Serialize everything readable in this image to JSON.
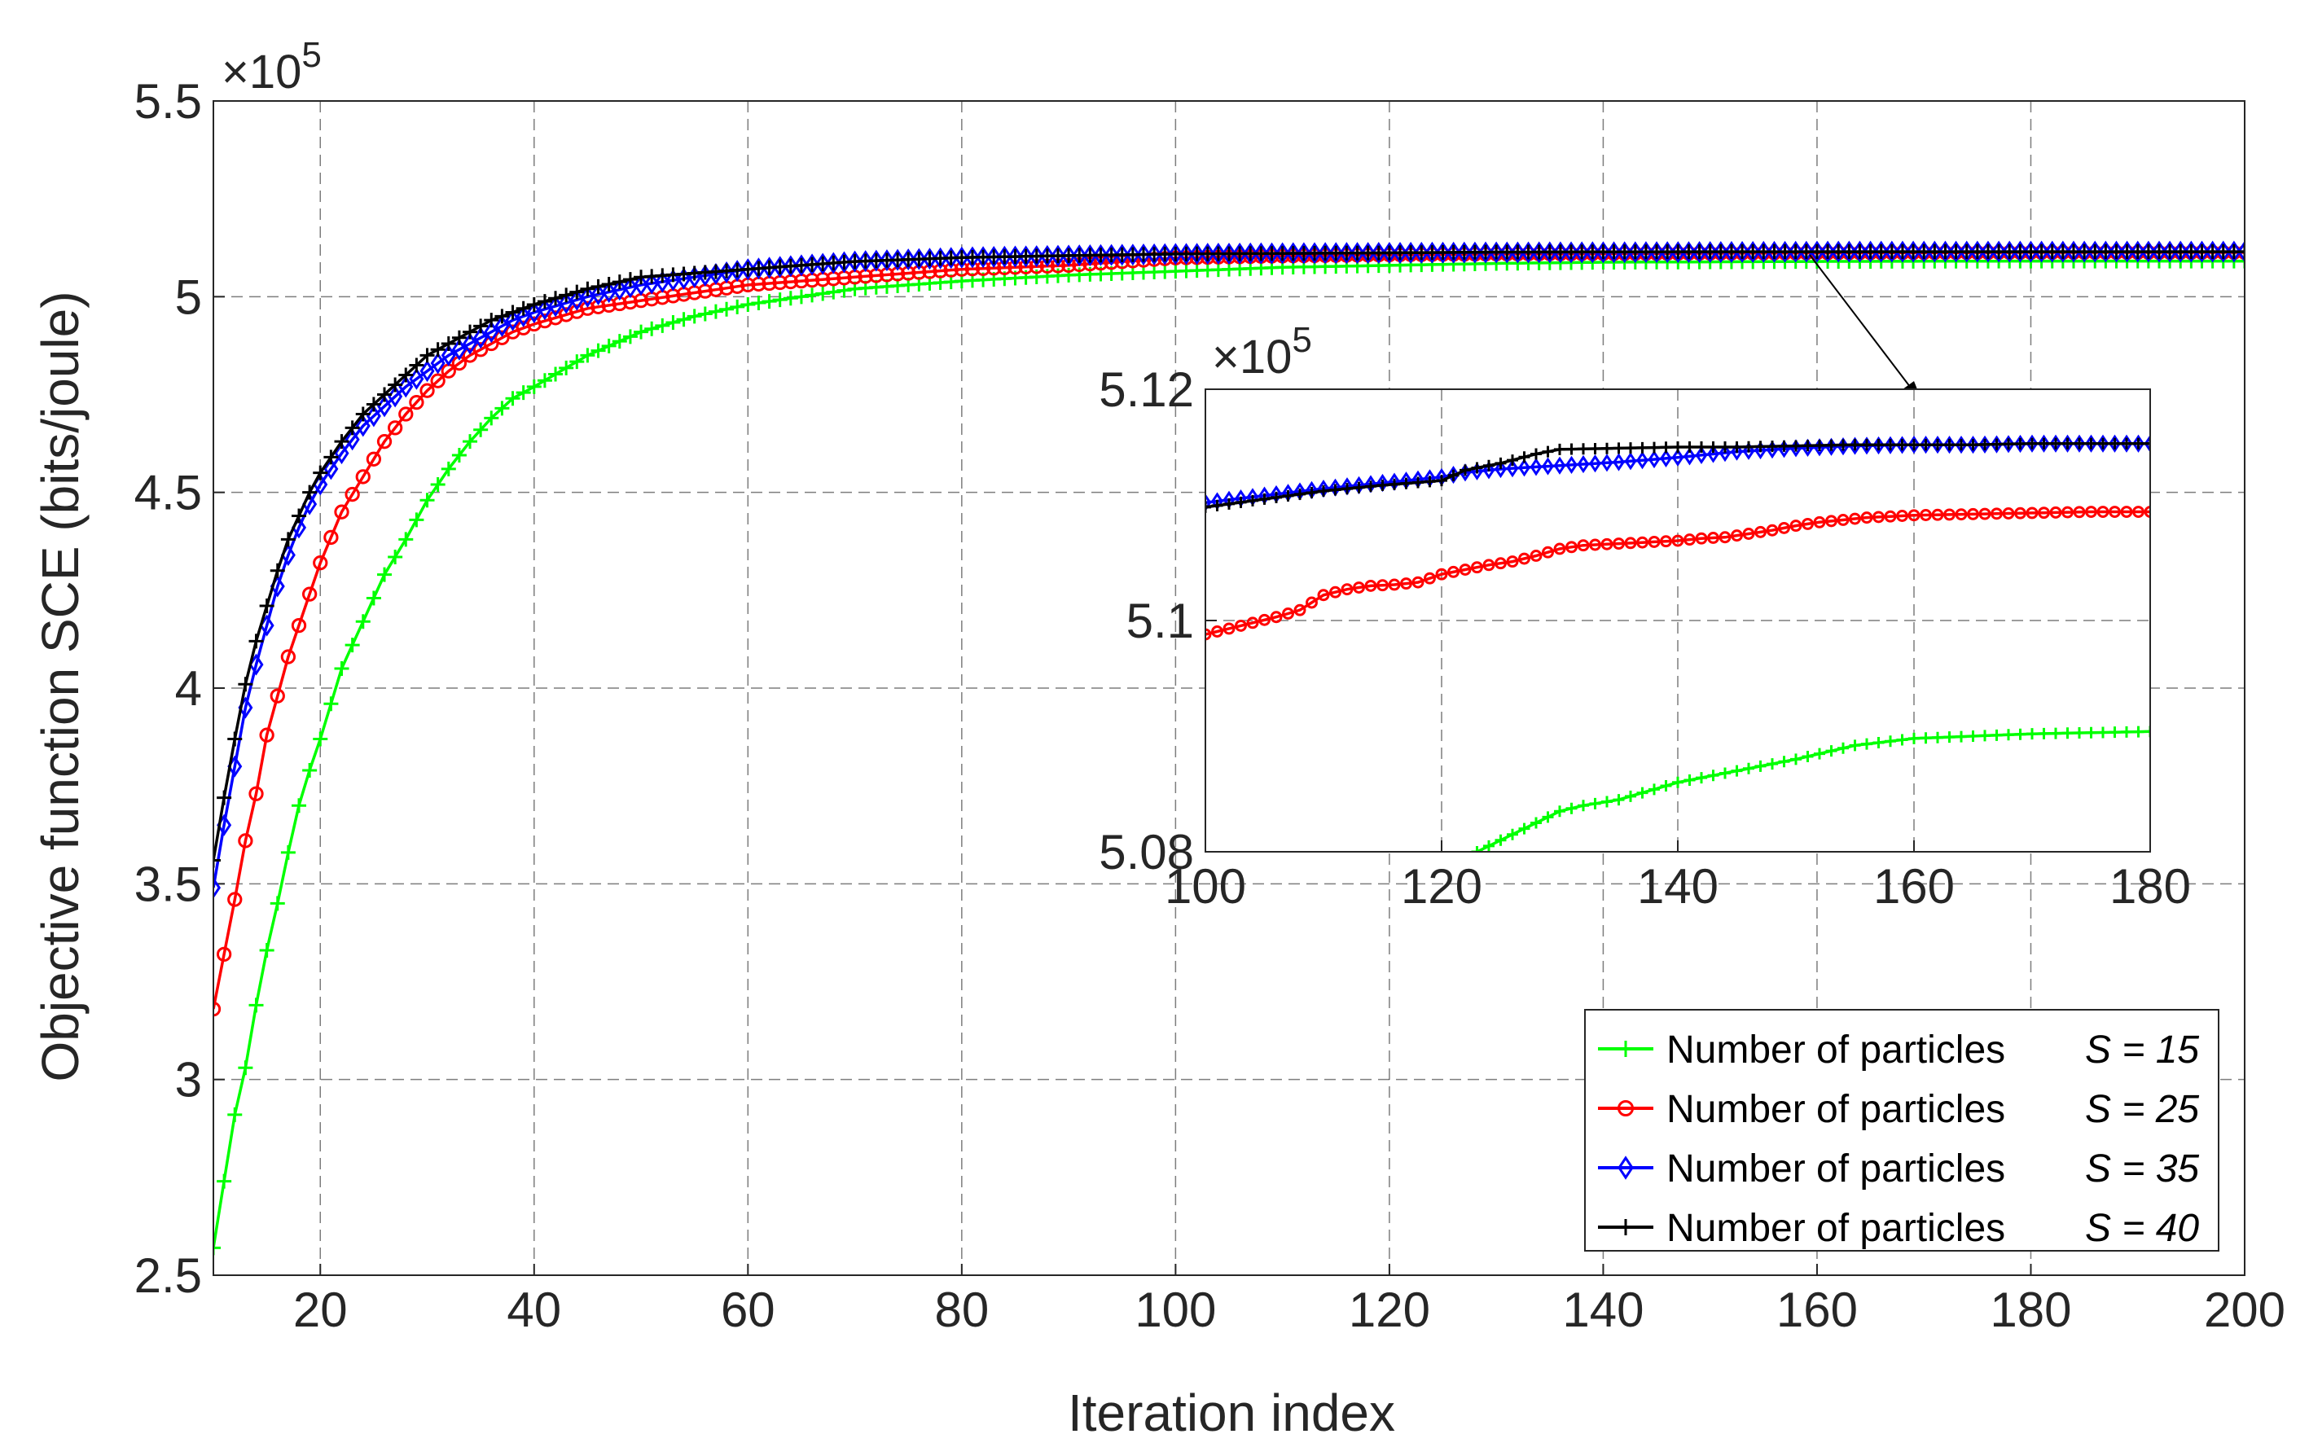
{
  "chart_data": {
    "type": "line",
    "xlabel": "Iteration index",
    "ylabel": "Objective function SCE (bits/joule)",
    "xlim": [
      10,
      200
    ],
    "ylim": [
      2.5,
      5.5
    ],
    "y_multiplier": "×10",
    "y_multiplier_exponent": "5",
    "xticks": [
      "20",
      "40",
      "60",
      "80",
      "100",
      "120",
      "140",
      "160",
      "180",
      "200"
    ],
    "yticks": [
      "2.5",
      "3",
      "3.5",
      "4",
      "4.5",
      "5",
      "5.5"
    ],
    "grid": true,
    "legend_position": "bottom-right",
    "series": [
      {
        "name": "Number of particles",
        "param": "S = 15",
        "color": "#00ff00",
        "marker": "plus",
        "x": [
          10,
          11,
          12,
          13,
          14,
          15,
          16,
          17,
          18,
          19,
          20,
          22,
          24,
          26,
          28,
          30,
          32,
          34,
          36,
          38,
          40,
          45,
          50,
          55,
          60,
          65,
          70,
          80,
          90,
          100,
          110,
          120,
          130,
          140,
          150,
          160,
          170,
          180,
          190,
          200
        ],
        "y": [
          2.57,
          2.74,
          2.91,
          3.03,
          3.19,
          3.33,
          3.45,
          3.58,
          3.7,
          3.79,
          3.87,
          4.05,
          4.17,
          4.29,
          4.38,
          4.48,
          4.56,
          4.63,
          4.69,
          4.74,
          4.77,
          4.85,
          4.91,
          4.95,
          4.98,
          5.0,
          5.02,
          5.04,
          5.055,
          5.065,
          5.075,
          5.08,
          5.085,
          5.088,
          5.089,
          5.09,
          5.0905,
          5.091,
          5.091,
          5.091
        ]
      },
      {
        "name": "Number of particles",
        "param": "S = 25",
        "color": "#ff0000",
        "marker": "circle",
        "x": [
          10,
          11,
          12,
          13,
          14,
          15,
          16,
          17,
          18,
          19,
          20,
          22,
          24,
          26,
          28,
          30,
          32,
          34,
          36,
          38,
          40,
          45,
          50,
          55,
          60,
          65,
          70,
          80,
          90,
          100,
          110,
          120,
          130,
          140,
          150,
          160,
          170,
          180,
          190,
          200
        ],
        "y": [
          3.18,
          3.32,
          3.46,
          3.61,
          3.73,
          3.88,
          3.98,
          4.08,
          4.16,
          4.24,
          4.32,
          4.45,
          4.54,
          4.63,
          4.7,
          4.76,
          4.81,
          4.85,
          4.88,
          4.91,
          4.93,
          4.97,
          4.99,
          5.01,
          5.03,
          5.04,
          5.05,
          5.07,
          5.08,
          5.099,
          5.104,
          5.107,
          5.109,
          5.11,
          5.111,
          5.112,
          5.1125,
          5.113,
          5.113,
          5.113
        ]
      },
      {
        "name": "Number of particles",
        "param": "S = 35",
        "color": "#0000ff",
        "marker": "diamond",
        "x": [
          10,
          11,
          12,
          13,
          14,
          15,
          16,
          17,
          18,
          19,
          20,
          22,
          24,
          26,
          28,
          30,
          32,
          34,
          36,
          38,
          40,
          45,
          50,
          55,
          60,
          65,
          70,
          80,
          90,
          100,
          110,
          120,
          130,
          140,
          150,
          160,
          170,
          180,
          190,
          200
        ],
        "y": [
          3.49,
          3.65,
          3.8,
          3.95,
          4.06,
          4.16,
          4.26,
          4.34,
          4.41,
          4.47,
          4.52,
          4.6,
          4.67,
          4.72,
          4.77,
          4.81,
          4.85,
          4.88,
          4.91,
          4.94,
          4.96,
          5.0,
          5.03,
          5.05,
          5.07,
          5.08,
          5.09,
          5.1,
          5.105,
          5.109,
          5.111,
          5.112,
          5.113,
          5.1135,
          5.114,
          5.115,
          5.115,
          5.115,
          5.115,
          5.115
        ]
      },
      {
        "name": "Number of particles",
        "param": "S = 40",
        "color": "#000000",
        "marker": "plus",
        "x": [
          10,
          11,
          12,
          13,
          14,
          15,
          16,
          17,
          18,
          19,
          20,
          22,
          24,
          26,
          28,
          30,
          32,
          34,
          36,
          38,
          40,
          45,
          50,
          55,
          60,
          65,
          70,
          80,
          90,
          100,
          110,
          120,
          130,
          140,
          150,
          160,
          170,
          180,
          190,
          200
        ],
        "y": [
          3.56,
          3.72,
          3.87,
          4.01,
          4.12,
          4.21,
          4.3,
          4.38,
          4.44,
          4.5,
          4.55,
          4.63,
          4.7,
          4.75,
          4.8,
          4.85,
          4.88,
          4.91,
          4.94,
          4.96,
          4.98,
          5.02,
          5.05,
          5.06,
          5.07,
          5.08,
          5.09,
          5.1,
          5.105,
          5.109,
          5.1105,
          5.112,
          5.114,
          5.1145,
          5.115,
          5.115,
          5.115,
          5.115,
          5.115,
          5.115
        ]
      }
    ],
    "inset": {
      "xlim": [
        100,
        180
      ],
      "ylim": [
        5.08,
        5.12
      ],
      "xticks": [
        "100",
        "120",
        "140",
        "160",
        "180"
      ],
      "yticks": [
        "5.08",
        "5.1",
        "5.12"
      ],
      "y_multiplier": "×10",
      "y_multiplier_exponent": "5",
      "series": [
        {
          "color": "#00ff00",
          "x": [
            100,
            110,
            120,
            123,
            126,
            130,
            132,
            135,
            140,
            145,
            150,
            155,
            160,
            165,
            170,
            175,
            180
          ],
          "y": [
            5.065,
            5.073,
            5.078,
            5.08,
            5.0815,
            5.0835,
            5.084,
            5.0845,
            5.086,
            5.087,
            5.088,
            5.0892,
            5.0898,
            5.09,
            5.0902,
            5.0903,
            5.0904
          ]
        },
        {
          "color": "#ff0000",
          "x": [
            100,
            102,
            104,
            106,
            108,
            110,
            112,
            114,
            116,
            118,
            120,
            122,
            124,
            126,
            128,
            130,
            132,
            134,
            136,
            138,
            140,
            142,
            144,
            146,
            148,
            150,
            152,
            154,
            156,
            158,
            160,
            165,
            170,
            175,
            180
          ],
          "y": [
            5.0988,
            5.0993,
            5.0998,
            5.1003,
            5.1009,
            5.1022,
            5.1027,
            5.103,
            5.1031,
            5.1033,
            5.104,
            5.1044,
            5.1048,
            5.1051,
            5.1056,
            5.1062,
            5.1065,
            5.1066,
            5.1067,
            5.1068,
            5.1069,
            5.1071,
            5.1072,
            5.1075,
            5.1078,
            5.1082,
            5.1085,
            5.1087,
            5.1089,
            5.109,
            5.1091,
            5.1092,
            5.1093,
            5.1094,
            5.1094
          ]
        },
        {
          "color": "#0000ff",
          "x": [
            100,
            105,
            110,
            115,
            120,
            122,
            125,
            130,
            135,
            140,
            145,
            150,
            155,
            160,
            165,
            170,
            175,
            180
          ],
          "y": [
            5.1102,
            5.1108,
            5.1114,
            5.1119,
            5.1124,
            5.1128,
            5.1131,
            5.1134,
            5.1137,
            5.1141,
            5.1146,
            5.1149,
            5.1151,
            5.1152,
            5.1152,
            5.1153,
            5.1153,
            5.1153
          ]
        },
        {
          "color": "#000000",
          "x": [
            100,
            105,
            110,
            115,
            120,
            122,
            125,
            128,
            130,
            135,
            140,
            145,
            150,
            155,
            160,
            165,
            170,
            175,
            180
          ],
          "y": [
            5.1098,
            5.1105,
            5.1112,
            5.1117,
            5.1121,
            5.113,
            5.1136,
            5.1144,
            5.1148,
            5.1149,
            5.115,
            5.115,
            5.1151,
            5.1152,
            5.1152,
            5.1152,
            5.1153,
            5.1153,
            5.1153
          ]
        }
      ]
    }
  }
}
